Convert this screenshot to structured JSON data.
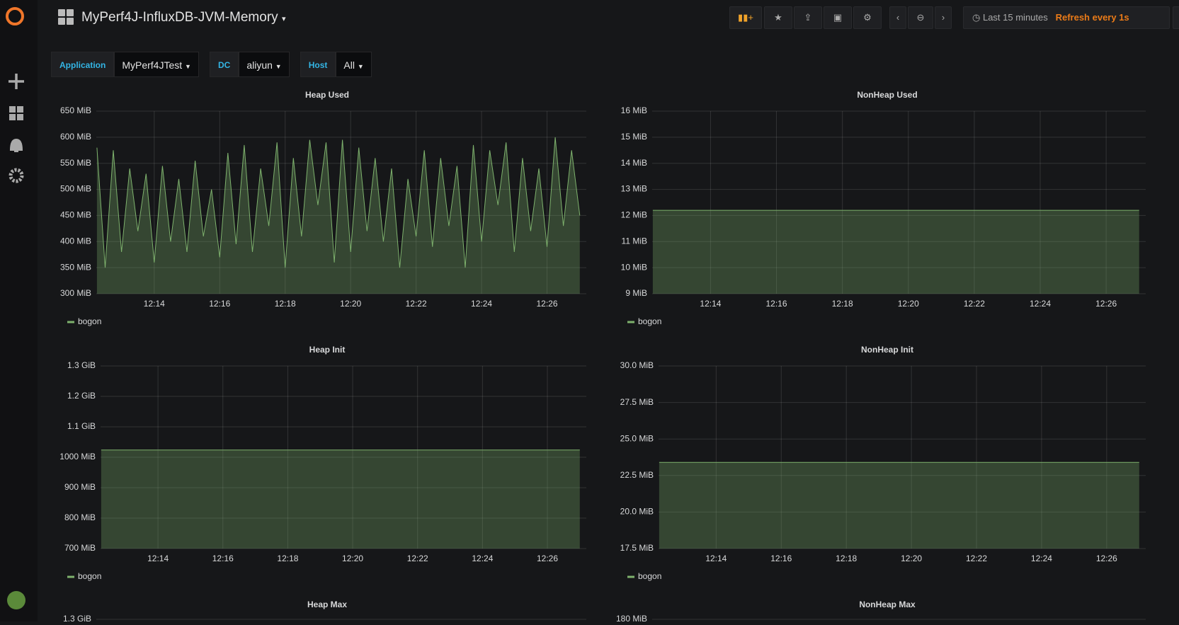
{
  "header": {
    "title": "MyPerf4J-InfluxDB-JVM-Memory",
    "time_range": "Last 15 minutes",
    "refresh": "Refresh every 1s"
  },
  "variables": [
    {
      "label": "Application",
      "value": "MyPerf4JTest"
    },
    {
      "label": "DC",
      "value": "aliyun"
    },
    {
      "label": "Host",
      "value": "All"
    }
  ],
  "chart_data": [
    {
      "type": "line",
      "title": "Heap Used",
      "grid": true,
      "legend": "bottom-left",
      "xlim": [
        732.23,
        747.2
      ],
      "xticks": [
        {
          "value": 734,
          "label": "12:14"
        },
        {
          "value": 736,
          "label": "12:16"
        },
        {
          "value": 738,
          "label": "12:18"
        },
        {
          "value": 740,
          "label": "12:20"
        },
        {
          "value": 742,
          "label": "12:22"
        },
        {
          "value": 744,
          "label": "12:24"
        },
        {
          "value": 746,
          "label": "12:26"
        }
      ],
      "ylim": [
        300,
        650
      ],
      "yticks": [
        {
          "value": 300,
          "label": "300 MiB"
        },
        {
          "value": 350,
          "label": "350 MiB"
        },
        {
          "value": 400,
          "label": "400 MiB"
        },
        {
          "value": 450,
          "label": "450 MiB"
        },
        {
          "value": 500,
          "label": "500 MiB"
        },
        {
          "value": 550,
          "label": "550 MiB"
        },
        {
          "value": 600,
          "label": "600 MiB"
        },
        {
          "value": 650,
          "label": "650 MiB"
        }
      ],
      "x": [
        732.25,
        732.5,
        732.75,
        733,
        733.25,
        733.5,
        733.75,
        734,
        734.25,
        734.5,
        734.75,
        735,
        735.25,
        735.5,
        735.75,
        736,
        736.25,
        736.5,
        736.75,
        737,
        737.25,
        737.5,
        737.75,
        738,
        738.25,
        738.5,
        738.75,
        739,
        739.25,
        739.5,
        739.75,
        740,
        740.25,
        740.5,
        740.75,
        741,
        741.25,
        741.5,
        741.75,
        742,
        742.25,
        742.5,
        742.75,
        743,
        743.25,
        743.5,
        743.75,
        744,
        744.25,
        744.5,
        744.75,
        745,
        745.25,
        745.5,
        745.75,
        746,
        746.25,
        746.5,
        746.75,
        747
      ],
      "series": [
        {
          "name": "bogon",
          "color": "#7eb26d",
          "values": [
            580,
            350,
            575,
            380,
            540,
            420,
            530,
            360,
            545,
            400,
            520,
            380,
            555,
            410,
            500,
            370,
            570,
            395,
            585,
            380,
            540,
            430,
            590,
            350,
            560,
            410,
            595,
            470,
            590,
            360,
            595,
            380,
            580,
            420,
            560,
            400,
            540,
            350,
            520,
            410,
            575,
            390,
            560,
            430,
            545,
            350,
            585,
            400,
            575,
            470,
            590,
            380,
            560,
            420,
            540,
            390,
            600,
            430,
            575,
            450
          ]
        }
      ]
    },
    {
      "type": "line",
      "title": "NonHeap Used",
      "grid": true,
      "legend": "bottom-left",
      "xlim": [
        732.23,
        747.2
      ],
      "xticks": [
        {
          "value": 734,
          "label": "12:14"
        },
        {
          "value": 736,
          "label": "12:16"
        },
        {
          "value": 738,
          "label": "12:18"
        },
        {
          "value": 740,
          "label": "12:20"
        },
        {
          "value": 742,
          "label": "12:22"
        },
        {
          "value": 744,
          "label": "12:24"
        },
        {
          "value": 746,
          "label": "12:26"
        }
      ],
      "ylim": [
        9,
        16
      ],
      "yticks": [
        {
          "value": 9,
          "label": "9 MiB"
        },
        {
          "value": 10,
          "label": "10 MiB"
        },
        {
          "value": 11,
          "label": "11 MiB"
        },
        {
          "value": 12,
          "label": "12 MiB"
        },
        {
          "value": 13,
          "label": "13 MiB"
        },
        {
          "value": 14,
          "label": "14 MiB"
        },
        {
          "value": 15,
          "label": "15 MiB"
        },
        {
          "value": 16,
          "label": "16 MiB"
        }
      ],
      "x": [
        732.25,
        747
      ],
      "series": [
        {
          "name": "bogon",
          "color": "#7eb26d",
          "values": [
            12.2,
            12.2
          ]
        }
      ]
    },
    {
      "type": "line",
      "title": "Heap Init",
      "grid": true,
      "legend": "bottom-left",
      "xlim": [
        732.23,
        747.2
      ],
      "xticks": [
        {
          "value": 734,
          "label": "12:14"
        },
        {
          "value": 736,
          "label": "12:16"
        },
        {
          "value": 738,
          "label": "12:18"
        },
        {
          "value": 740,
          "label": "12:20"
        },
        {
          "value": 742,
          "label": "12:22"
        },
        {
          "value": 744,
          "label": "12:24"
        },
        {
          "value": 746,
          "label": "12:26"
        }
      ],
      "ylim": [
        700,
        1300
      ],
      "yticks": [
        {
          "value": 700,
          "label": "700 MiB"
        },
        {
          "value": 800,
          "label": "800 MiB"
        },
        {
          "value": 900,
          "label": "900 MiB"
        },
        {
          "value": 1000,
          "label": "1000 MiB"
        },
        {
          "value": 1100,
          "label": "1.1 GiB"
        },
        {
          "value": 1200,
          "label": "1.2 GiB"
        },
        {
          "value": 1300,
          "label": "1.3 GiB"
        }
      ],
      "x": [
        732.25,
        747
      ],
      "series": [
        {
          "name": "bogon",
          "color": "#7eb26d",
          "values": [
            1024,
            1024
          ]
        }
      ]
    },
    {
      "type": "line",
      "title": "NonHeap Init",
      "grid": true,
      "legend": "bottom-left",
      "xlim": [
        732.23,
        747.2
      ],
      "xticks": [
        {
          "value": 734,
          "label": "12:14"
        },
        {
          "value": 736,
          "label": "12:16"
        },
        {
          "value": 738,
          "label": "12:18"
        },
        {
          "value": 740,
          "label": "12:20"
        },
        {
          "value": 742,
          "label": "12:22"
        },
        {
          "value": 744,
          "label": "12:24"
        },
        {
          "value": 746,
          "label": "12:26"
        }
      ],
      "ylim": [
        17.5,
        30
      ],
      "yticks": [
        {
          "value": 17.5,
          "label": "17.5 MiB"
        },
        {
          "value": 20,
          "label": "20.0 MiB"
        },
        {
          "value": 22.5,
          "label": "22.5 MiB"
        },
        {
          "value": 25,
          "label": "25.0 MiB"
        },
        {
          "value": 27.5,
          "label": "27.5 MiB"
        },
        {
          "value": 30,
          "label": "30.0 MiB"
        }
      ],
      "x": [
        732.25,
        747
      ],
      "series": [
        {
          "name": "bogon",
          "color": "#7eb26d",
          "values": [
            23.4,
            23.4
          ]
        }
      ]
    },
    {
      "type": "line",
      "title": "Heap Max",
      "grid": true,
      "ylim": [
        700,
        1300
      ],
      "yticks": [
        {
          "value": 1300,
          "label": "1.3 GiB"
        }
      ]
    },
    {
      "type": "line",
      "title": "NonHeap Max",
      "grid": true,
      "ylim": [
        0,
        180
      ],
      "yticks": [
        {
          "value": 180,
          "label": "180 MiB"
        }
      ]
    }
  ]
}
